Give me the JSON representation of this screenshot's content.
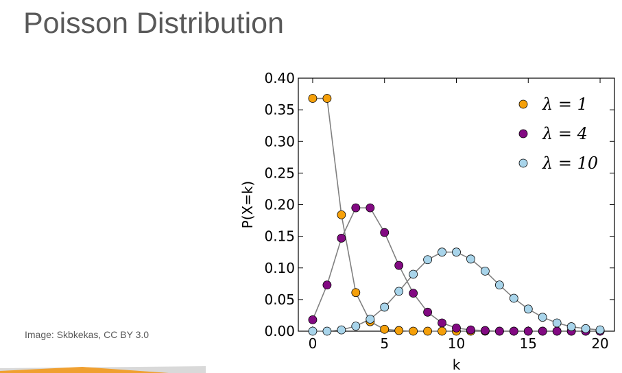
{
  "slide": {
    "title": "Poisson Distribution",
    "credit": "Image: Skbkekas, CC BY 3.0"
  },
  "colors": {
    "title_text": "#595959",
    "series_line": "#808080",
    "accent_bar": "#f0a030"
  },
  "chart_data": {
    "type": "line",
    "title": "",
    "xlabel": "k",
    "ylabel": "P(X=k)",
    "xlim": [
      -1,
      21
    ],
    "ylim": [
      0,
      0.4
    ],
    "xticks": [
      0,
      5,
      10,
      15,
      20
    ],
    "xtick_labels": [
      "0",
      "5",
      "10",
      "15",
      "20"
    ],
    "yticks": [
      0,
      0.05,
      0.1,
      0.15,
      0.2,
      0.25,
      0.3,
      0.35,
      0.4
    ],
    "ytick_labels": [
      "0.00",
      "0.05",
      "0.10",
      "0.15",
      "0.20",
      "0.25",
      "0.30",
      "0.35",
      "0.40"
    ],
    "grid": false,
    "legend_position": "top-right",
    "x": [
      0,
      1,
      2,
      3,
      4,
      5,
      6,
      7,
      8,
      9,
      10,
      11,
      12,
      13,
      14,
      15,
      16,
      17,
      18,
      19,
      20
    ],
    "series": [
      {
        "name": "λ = 1",
        "color": "#f5a00a",
        "values": [
          0.368,
          0.368,
          0.184,
          0.061,
          0.015,
          0.003,
          0.001,
          0.0,
          0.0,
          0.0,
          0.0,
          0.0,
          0.0,
          0.0,
          0.0,
          0.0,
          0.0,
          0.0,
          0.0,
          0.0,
          0.0
        ]
      },
      {
        "name": "λ = 4",
        "color": "#820a82",
        "values": [
          0.018,
          0.073,
          0.147,
          0.195,
          0.195,
          0.156,
          0.104,
          0.06,
          0.03,
          0.013,
          0.005,
          0.002,
          0.001,
          0.0,
          0.0,
          0.0,
          0.0,
          0.0,
          0.0,
          0.0,
          0.0
        ]
      },
      {
        "name": "λ = 10",
        "color": "#a8d4ea",
        "values": [
          0.0,
          0.0,
          0.002,
          0.008,
          0.019,
          0.038,
          0.063,
          0.09,
          0.113,
          0.125,
          0.125,
          0.114,
          0.095,
          0.073,
          0.052,
          0.035,
          0.022,
          0.013,
          0.007,
          0.004,
          0.002
        ]
      }
    ]
  }
}
